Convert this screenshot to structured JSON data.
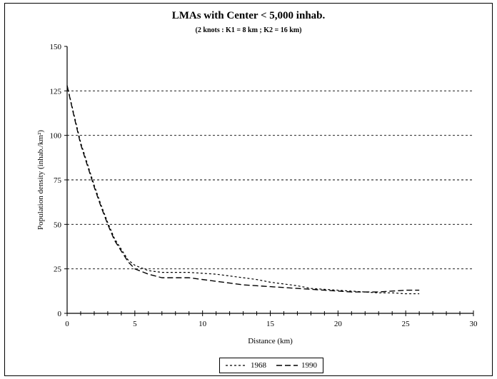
{
  "chart_data": {
    "type": "line",
    "title": "LMAs with Center < 5,000 inhab.",
    "subtitle": "(2 knots : K1 = 8 km ; K2 = 16 km)",
    "xlabel": "Distance (km)",
    "ylabel": "Population density (inhab./km²)",
    "xlim": [
      0,
      30
    ],
    "ylim": [
      0,
      150
    ],
    "xticks": [
      0,
      5,
      10,
      15,
      20,
      25,
      30
    ],
    "yticks": [
      0,
      25,
      50,
      75,
      100,
      125,
      150
    ],
    "grid": "horizontal dashed",
    "legend_position": "bottom",
    "series": [
      {
        "name": "1968",
        "style": "dashed-short",
        "x": [
          0,
          0.5,
          1,
          1.5,
          2,
          2.5,
          3,
          3.5,
          4,
          4.5,
          5,
          6,
          7,
          8,
          9,
          10,
          11,
          12,
          13,
          14,
          15,
          16,
          17,
          18,
          19,
          20,
          21,
          22,
          23,
          24,
          25,
          26
        ],
        "y": [
          128,
          112,
          96,
          84,
          72,
          61,
          51,
          42,
          36,
          30,
          27,
          24,
          23,
          23,
          23,
          22.5,
          22,
          21,
          20,
          19,
          17.5,
          16.5,
          15.5,
          14,
          13.5,
          13,
          12.5,
          12,
          11.5,
          11.5,
          11,
          11
        ]
      },
      {
        "name": "1990",
        "style": "dashed-long",
        "x": [
          0,
          0.5,
          1,
          1.5,
          2,
          2.5,
          3,
          3.5,
          4,
          4.5,
          5,
          6,
          7,
          8,
          9,
          10,
          11,
          12,
          13,
          14,
          15,
          16,
          17,
          18,
          19,
          20,
          21,
          22,
          23,
          24,
          25,
          26
        ],
        "y": [
          128,
          111,
          95,
          83,
          71,
          60,
          50,
          41,
          35,
          29,
          25,
          22,
          20,
          20,
          20,
          19,
          18,
          17,
          16,
          15.5,
          15,
          14.5,
          14,
          13.5,
          13,
          12.5,
          12,
          12,
          12,
          12.5,
          13,
          13
        ]
      }
    ]
  }
}
